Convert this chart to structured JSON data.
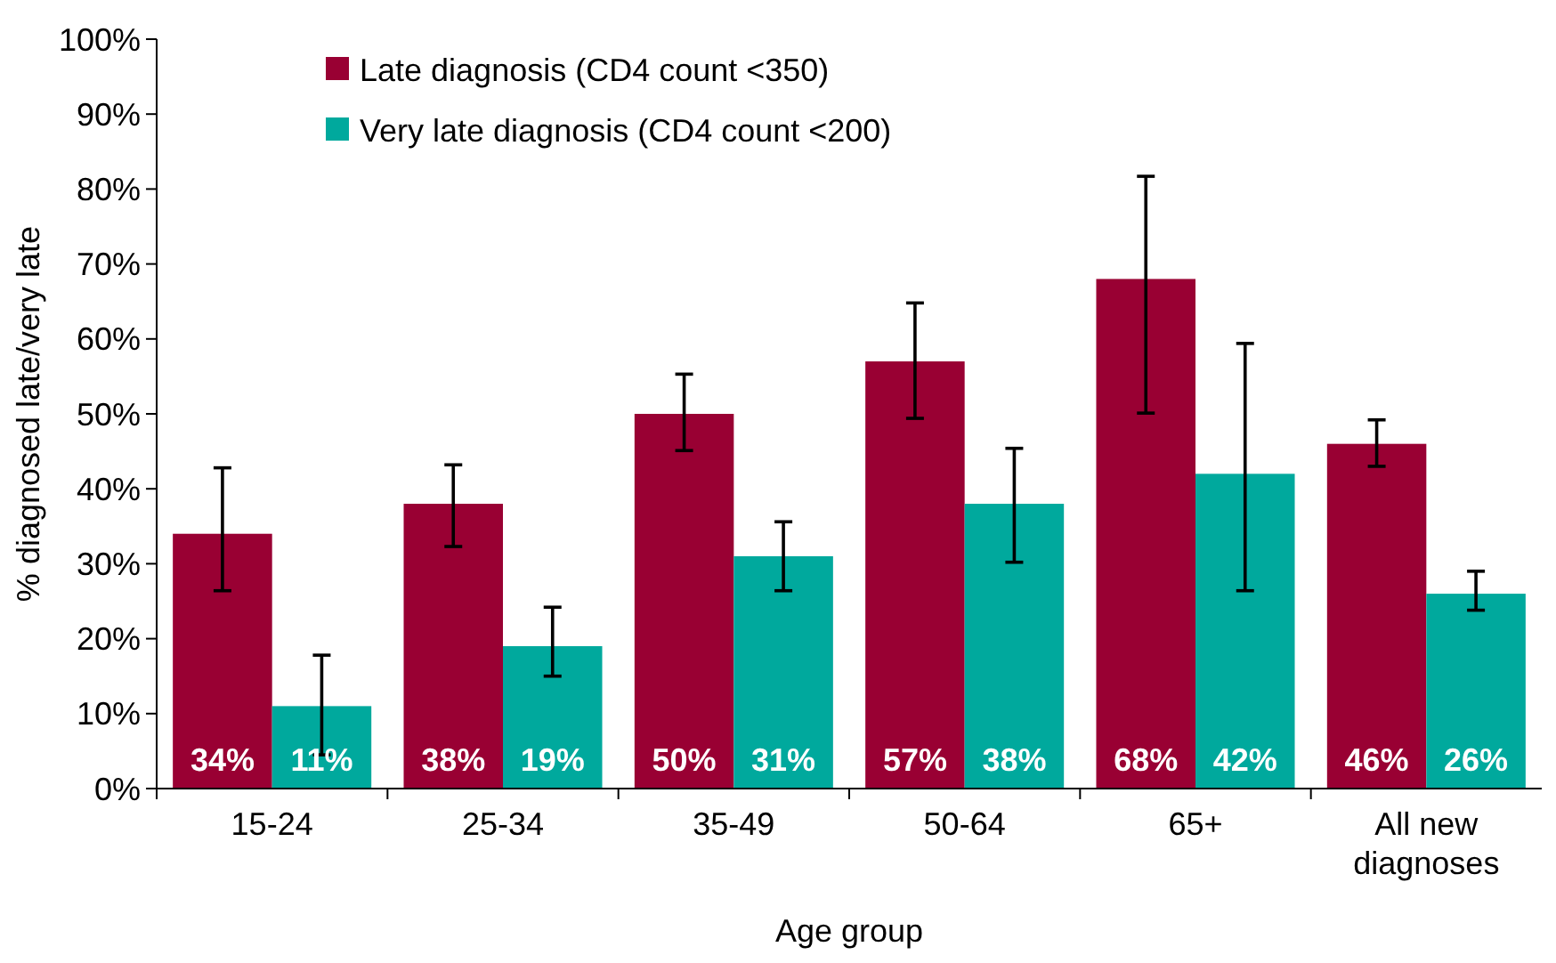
{
  "chart_data": {
    "type": "bar",
    "xlabel": "Age group",
    "ylabel": "% diagnosed late/very late",
    "categories": [
      "15-24",
      "25-34",
      "35-49",
      "50-64",
      "65+",
      "All new diagnoses"
    ],
    "series": [
      {
        "name": "Late diagnosis (CD4 count <350)",
        "color": "#990033",
        "values": [
          34,
          38,
          50,
          57,
          68,
          46
        ],
        "value_labels": [
          "34%",
          "38%",
          "50%",
          "57%",
          "68%",
          "46%"
        ],
        "errors": [
          [
            26.4,
            42.8
          ],
          [
            32.3,
            43.2
          ],
          [
            45.1,
            55.3
          ],
          [
            49.4,
            64.8
          ],
          [
            50.1,
            81.7
          ],
          [
            43,
            49.2
          ]
        ]
      },
      {
        "name": "Very late diagnosis (CD4 count <200)",
        "color": "#00a99d",
        "values": [
          11,
          19,
          31,
          38,
          42,
          26
        ],
        "value_labels": [
          "11%",
          "19%",
          "31%",
          "38%",
          "42%",
          "26%"
        ],
        "errors": [
          [
            4.5,
            17.8
          ],
          [
            15,
            24.2
          ],
          [
            26.4,
            35.6
          ],
          [
            30.2,
            45.4
          ],
          [
            26.4,
            59.4
          ],
          [
            23.8,
            29
          ]
        ]
      }
    ],
    "ylim": [
      0,
      100
    ],
    "yticks": [
      {
        "value": 0,
        "label": "0%"
      },
      {
        "value": 10,
        "label": "10%"
      },
      {
        "value": 20,
        "label": "20%"
      },
      {
        "value": 30,
        "label": "30%"
      },
      {
        "value": 40,
        "label": "40%"
      },
      {
        "value": 50,
        "label": "50%"
      },
      {
        "value": 60,
        "label": "60%"
      },
      {
        "value": 70,
        "label": "70%"
      },
      {
        "value": 80,
        "label": "80%"
      },
      {
        "value": 90,
        "label": "90%"
      },
      {
        "value": 100,
        "label": "100%"
      }
    ],
    "legend": "top left",
    "grid": false
  }
}
